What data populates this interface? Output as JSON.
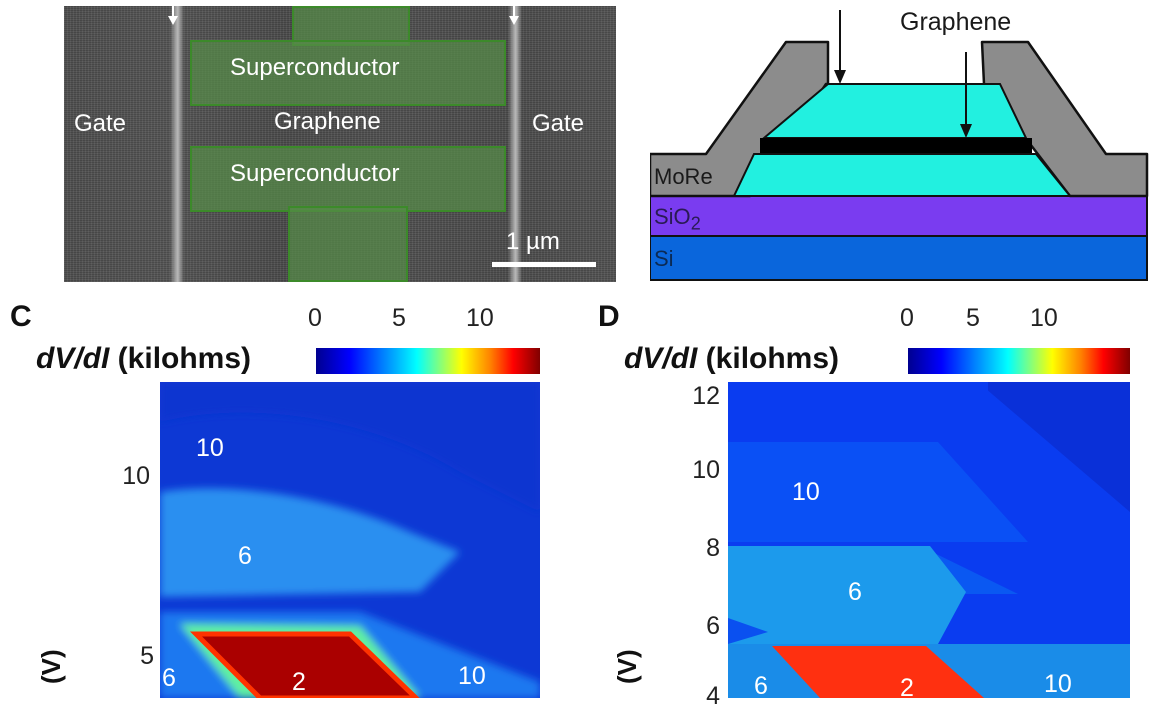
{
  "panel_a": {
    "labels": {
      "gate_left": "Gate",
      "gate_right": "Gate",
      "superconductor_top": "Superconductor",
      "graphene": "Graphene",
      "superconductor_bottom": "Superconductor",
      "scalebar": "1 µm"
    }
  },
  "panel_b": {
    "graphene_label": "Graphene",
    "layers": {
      "more": "MoRe",
      "sio2": "SiO",
      "sio2_sub": "2",
      "si": "Si"
    },
    "colors": {
      "more": "#8c8c8c",
      "hbn": "#22f0e0",
      "sio2": "#7a3cf0",
      "si": "#0a66dc",
      "graphene": "#000000"
    }
  },
  "panel_c": {
    "letter": "C",
    "cbar_title_italic": "dV/dI",
    "cbar_title_rest": " (kilohms)",
    "cbar_ticks": [
      "0",
      "5",
      "10"
    ],
    "y_ticks": [
      "10",
      "5"
    ],
    "y_label": "(V)",
    "region_labels": {
      "ten_top": "10",
      "six_mid": "6",
      "two": "2",
      "six_left": "6",
      "ten_right": "10"
    }
  },
  "panel_d": {
    "letter": "D",
    "cbar_title_italic": "dV/dI",
    "cbar_title_rest": " (kilohms)",
    "cbar_ticks": [
      "0",
      "5",
      "10"
    ],
    "y_ticks": [
      "12",
      "10",
      "8",
      "6",
      "4"
    ],
    "y_label": "(V)",
    "region_labels": {
      "ten_top": "10",
      "six_mid": "6",
      "two": "2",
      "six_left": "6",
      "ten_right": "10"
    }
  }
}
